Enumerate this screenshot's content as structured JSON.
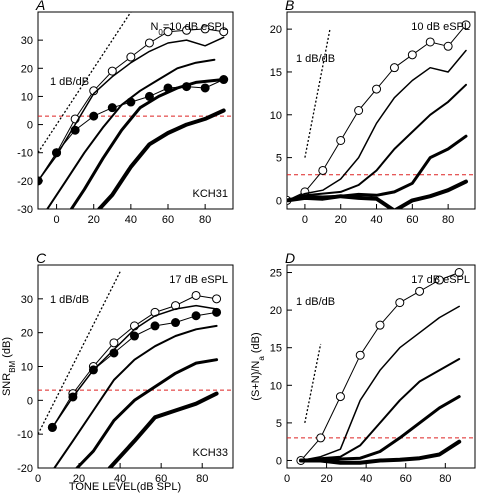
{
  "figure": {
    "xlabel_shared": "TONE LEVEL(dB SPL)"
  },
  "panels": [
    {
      "letter": "A",
      "note": "N₀=10 dB eSPL",
      "id_label": "KCH31",
      "ref_label": "1 dB/dB"
    },
    {
      "letter": "B",
      "note": "10 dB eSPL",
      "id_label": "",
      "ref_label": "1 dB/dB"
    },
    {
      "letter": "C",
      "note": "17 dB eSPL",
      "id_label": "KCH33",
      "ref_label": "1 dB/dB",
      "ylabel": "SNR_BM (dB)"
    },
    {
      "letter": "D",
      "note": "17 dB eSPL",
      "id_label": "",
      "ref_label": "1 dB/dB",
      "ylabel": "(S+N)/N_a (dB)"
    }
  ],
  "chart_data": [
    {
      "type": "line",
      "panel": "A",
      "title": "N₀=10 dB eSPL",
      "xlabel": "",
      "ylabel": "",
      "xlim": [
        -10,
        95
      ],
      "ylim": [
        -30,
        40
      ],
      "xticks": [
        0,
        20,
        40,
        60,
        80
      ],
      "yticks": [
        -30,
        -20,
        -10,
        0,
        10,
        20,
        30,
        40
      ],
      "ytick_labels": [
        "-30",
        "-20",
        "-10",
        "0",
        "10",
        "20",
        "30",
        ""
      ],
      "threshold_y": 3,
      "series": [
        {
          "style": "open-circle",
          "x": [
            -10,
            0,
            10,
            20,
            30,
            40,
            50,
            60,
            70,
            80,
            90
          ],
          "y": [
            -20,
            -10,
            2,
            12,
            19,
            24,
            29,
            33,
            33.5,
            34,
            33
          ]
        },
        {
          "style": "filled-circle",
          "x": [
            -10,
            0,
            10,
            20,
            30,
            40,
            50,
            60,
            70,
            80,
            90
          ],
          "y": [
            -20,
            -10,
            -2,
            3,
            6,
            8,
            10,
            13,
            13.5,
            13,
            16
          ]
        },
        {
          "style": "thin",
          "x": [
            -10,
            0,
            10,
            20,
            30,
            40,
            50,
            60,
            70,
            80,
            90
          ],
          "y": [
            -20,
            -11,
            0,
            11,
            17,
            22,
            26,
            29,
            30,
            28,
            31
          ]
        },
        {
          "style": "medium",
          "x": [
            -5,
            5,
            15,
            25,
            35,
            45,
            55,
            65,
            75,
            85
          ],
          "y": [
            -30,
            -20,
            -10,
            -1,
            7,
            12,
            16,
            20,
            22,
            23
          ]
        },
        {
          "style": "thick",
          "x": [
            8,
            15,
            25,
            35,
            45,
            55,
            65,
            75,
            90
          ],
          "y": [
            -30,
            -23,
            -12,
            -2,
            6,
            10,
            13,
            15,
            16
          ]
        },
        {
          "style": "thickest",
          "x": [
            23,
            30,
            40,
            50,
            60,
            70,
            80,
            90
          ],
          "y": [
            -30,
            -25,
            -15,
            -7,
            -3,
            0,
            2,
            5
          ]
        }
      ],
      "ref_line": {
        "x": [
          -10,
          40
        ],
        "y": [
          -10,
          40
        ],
        "label": "1 dB/dB"
      }
    },
    {
      "type": "line",
      "panel": "B",
      "title": "10 dB eSPL",
      "xlabel": "",
      "ylabel": "",
      "xlim": [
        -10,
        95
      ],
      "ylim": [
        -1,
        22
      ],
      "xticks": [
        0,
        20,
        40,
        60,
        80
      ],
      "yticks": [
        0,
        5,
        10,
        15,
        20
      ],
      "threshold_y": 3,
      "series": [
        {
          "style": "open-circle",
          "x": [
            -10,
            0,
            10,
            20,
            30,
            40,
            50,
            60,
            70,
            80,
            90
          ],
          "y": [
            0,
            1,
            3.5,
            7,
            10.5,
            13,
            15.5,
            17,
            18.5,
            18,
            20.5
          ]
        },
        {
          "style": "thin",
          "x": [
            -10,
            0,
            10,
            20,
            30,
            40,
            50,
            60,
            70,
            80,
            90
          ],
          "y": [
            0,
            0.8,
            1.2,
            2.5,
            5,
            9,
            12,
            14,
            15.5,
            15,
            17.5
          ]
        },
        {
          "style": "medium",
          "x": [
            -10,
            0,
            10,
            20,
            30,
            40,
            50,
            60,
            70,
            80,
            90
          ],
          "y": [
            0,
            0.6,
            0.8,
            1,
            1.8,
            3.5,
            6,
            8,
            10,
            11.5,
            13.5
          ]
        },
        {
          "style": "thick",
          "x": [
            -10,
            0,
            10,
            20,
            30,
            40,
            50,
            60,
            70,
            80,
            90
          ],
          "y": [
            0,
            0.5,
            0.4,
            0.5,
            0.7,
            0.6,
            1,
            2,
            5,
            6,
            7.5
          ]
        },
        {
          "style": "thickest",
          "x": [
            -10,
            0,
            10,
            20,
            30,
            40,
            50,
            60,
            70,
            80,
            90
          ],
          "y": [
            0,
            0.3,
            0.2,
            0.5,
            0.3,
            0.2,
            -1.2,
            0,
            0.5,
            1.2,
            2.2
          ]
        }
      ],
      "ref_line": {
        "x": [
          0,
          14
        ],
        "y": [
          5,
          20
        ],
        "label": "1 dB/dB"
      }
    },
    {
      "type": "line",
      "panel": "C",
      "title": "17 dB eSPL",
      "xlabel": "TONE LEVEL(dB SPL)",
      "ylabel": "SNR_BM (dB)",
      "xlim": [
        0,
        95
      ],
      "ylim": [
        -20,
        40
      ],
      "xticks": [
        0,
        20,
        40,
        60,
        80
      ],
      "yticks": [
        -20,
        -10,
        0,
        10,
        20,
        30,
        40
      ],
      "ytick_labels": [
        "-20",
        "-10",
        "0",
        "10",
        "20",
        "30",
        ""
      ],
      "threshold_y": 3,
      "series": [
        {
          "style": "open-circle",
          "x": [
            7,
            17,
            27,
            37,
            47,
            57,
            67,
            77,
            87
          ],
          "y": [
            -8,
            2,
            10,
            17,
            22,
            26,
            28,
            31,
            30
          ]
        },
        {
          "style": "filled-circle",
          "x": [
            7,
            17,
            27,
            37,
            47,
            57,
            67,
            77,
            87
          ],
          "y": [
            -8,
            1,
            9,
            14,
            19,
            22,
            23,
            25,
            26
          ]
        },
        {
          "style": "thin",
          "x": [
            7,
            17,
            27,
            37,
            47,
            57,
            67,
            77,
            87
          ],
          "y": [
            -8,
            1,
            9,
            15,
            21,
            25,
            27,
            28,
            27
          ]
        },
        {
          "style": "medium",
          "x": [
            8,
            17,
            27,
            37,
            47,
            57,
            67,
            77,
            87
          ],
          "y": [
            -20,
            -12,
            -3,
            6,
            12,
            16,
            19,
            21,
            22
          ]
        },
        {
          "style": "thick",
          "x": [
            19,
            27,
            37,
            47,
            57,
            67,
            77,
            87
          ],
          "y": [
            -20,
            -15,
            -6,
            0,
            4,
            8,
            11,
            12
          ]
        },
        {
          "style": "thickest",
          "x": [
            35,
            47,
            57,
            67,
            77,
            87
          ],
          "y": [
            -20,
            -12,
            -5,
            -3,
            -1,
            2
          ]
        }
      ],
      "ref_line": {
        "x": [
          0,
          40
        ],
        "y": [
          -10,
          38
        ],
        "label": "1 dB/dB"
      }
    },
    {
      "type": "line",
      "panel": "D",
      "title": "17 dB eSPL",
      "xlabel": "",
      "ylabel": "(S+N)/N_a (dB)",
      "xlim": [
        0,
        95
      ],
      "ylim": [
        -1,
        26
      ],
      "xticks": [
        0,
        20,
        40,
        60,
        80
      ],
      "yticks": [
        0,
        5,
        10,
        15,
        20,
        25
      ],
      "threshold_y": 3,
      "series": [
        {
          "style": "open-circle",
          "x": [
            7,
            17,
            27,
            37,
            47,
            57,
            67,
            77,
            87
          ],
          "y": [
            0,
            3,
            8.5,
            14,
            18,
            21,
            22.5,
            24,
            25
          ]
        },
        {
          "style": "thin",
          "x": [
            7,
            17,
            27,
            37,
            47,
            57,
            67,
            77,
            87
          ],
          "y": [
            0,
            0.5,
            1.5,
            8,
            12,
            15,
            17,
            19,
            20.5
          ]
        },
        {
          "style": "medium",
          "x": [
            7,
            17,
            27,
            37,
            47,
            57,
            67,
            77,
            87
          ],
          "y": [
            0,
            0.3,
            0.5,
            2,
            5,
            8,
            10.5,
            12,
            13.5
          ]
        },
        {
          "style": "thick",
          "x": [
            7,
            17,
            27,
            37,
            47,
            57,
            67,
            77,
            87
          ],
          "y": [
            0,
            0.2,
            0.2,
            0.3,
            1.2,
            3,
            5,
            7,
            8.5
          ]
        },
        {
          "style": "thickest",
          "x": [
            7,
            17,
            27,
            37,
            47,
            57,
            67,
            77,
            87
          ],
          "y": [
            0,
            0,
            -0.3,
            -0.3,
            0,
            0.1,
            0.3,
            0.8,
            2.5
          ]
        }
      ],
      "ref_line": {
        "x": [
          9,
          17
        ],
        "y": [
          5,
          15.5
        ],
        "label": "1 dB/dB"
      }
    }
  ]
}
